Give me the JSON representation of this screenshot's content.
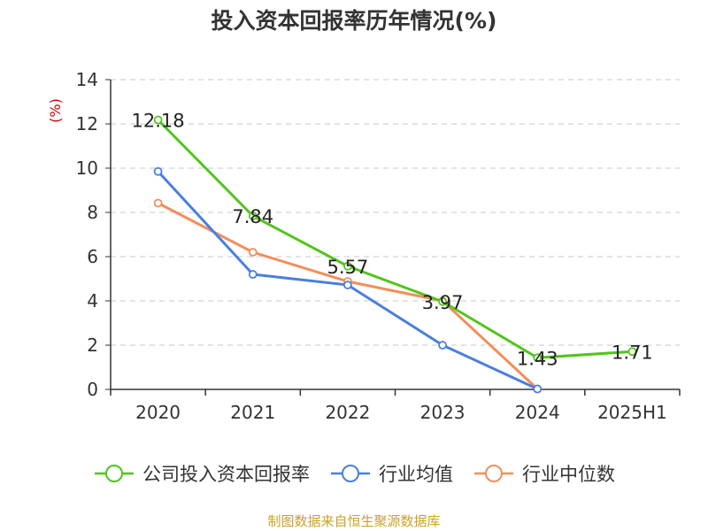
{
  "chart_data": {
    "type": "line",
    "title": "投入资本回报率历年情况(%)",
    "ylabel": "(%)",
    "categories": [
      "2020",
      "2021",
      "2022",
      "2023",
      "2024",
      "2025H1"
    ],
    "ylim": [
      0,
      14
    ],
    "yticks": [
      0,
      2,
      4,
      6,
      8,
      10,
      12,
      14
    ],
    "grid": "horizontal-dashed",
    "legend_position": "bottom",
    "series": [
      {
        "name": "公司投入资本回报率",
        "color": "#52c41a",
        "values": [
          12.18,
          7.84,
          5.57,
          3.97,
          1.43,
          1.71
        ],
        "labels": [
          "12.18",
          "7.84",
          "5.57",
          "3.97",
          "1.43",
          "1.71"
        ]
      },
      {
        "name": "行业均值",
        "color": "#4a7fdc",
        "values": [
          9.85,
          5.2,
          4.72,
          2.0,
          0.02,
          null
        ]
      },
      {
        "name": "行业中位数",
        "color": "#f28e5b",
        "values": [
          8.42,
          6.2,
          4.88,
          4.0,
          0.02,
          null
        ]
      }
    ]
  },
  "source": "制图数据来自恒生聚源数据库"
}
